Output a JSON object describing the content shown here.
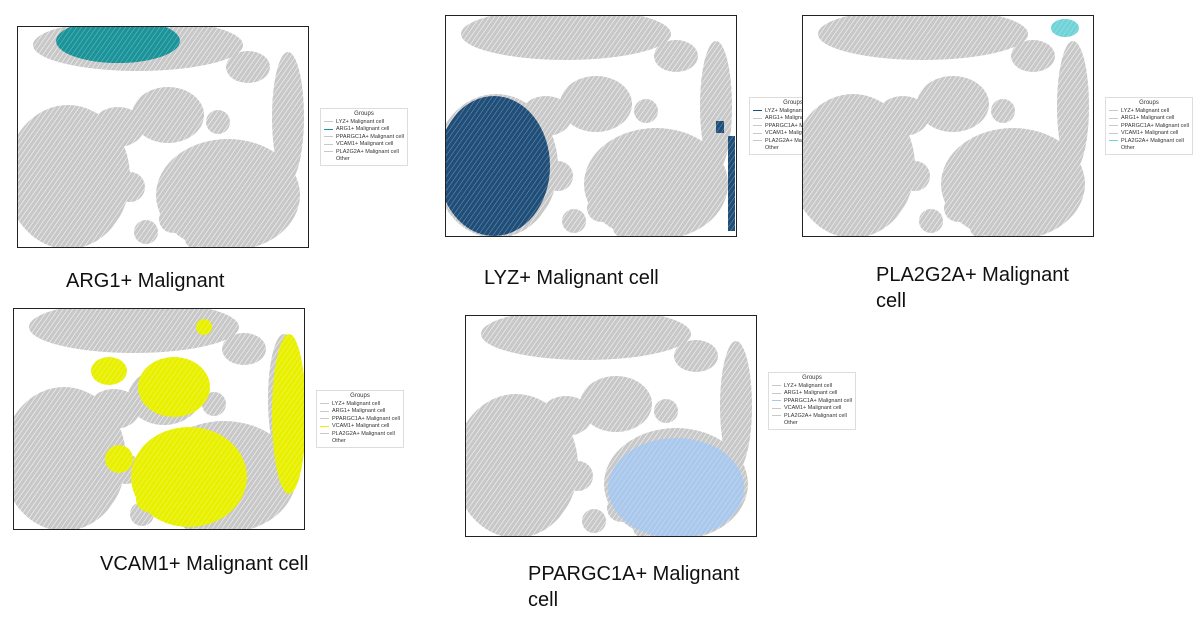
{
  "panels": [
    {
      "caption": "ARG1+ Malignant",
      "legend": {
        "title": "Groups",
        "entries": [
          {
            "label": "LYZ+ Malignant cell",
            "color": "#c8c8c8"
          },
          {
            "label": "ARG1+ Malignant cell",
            "color": "#1a9399"
          },
          {
            "label": "PPARGC1A+ Malignant cell",
            "color": "#c8c8c8"
          },
          {
            "label": "VCAM1+ Malignant cell",
            "color": "#c8c8c8"
          },
          {
            "label": "PLA2G2A+ Malignant cell",
            "color": "#c8c8c8"
          },
          {
            "label": "Other",
            "color": null
          }
        ]
      }
    },
    {
      "caption": "LYZ+ Malignant cell",
      "legend": {
        "title": "Groups",
        "entries": [
          {
            "label": "LYZ+ Malignant cell",
            "color": "#1f4e79"
          },
          {
            "label": "ARG1+ Malignant cell",
            "color": "#c8c8c8"
          },
          {
            "label": "PPARGC1A+ Malignant cell",
            "color": "#c8c8c8"
          },
          {
            "label": "VCAM1+ Malignant cell",
            "color": "#c8c8c8"
          },
          {
            "label": "PLA2G2A+ Malignant cell",
            "color": "#c8c8c8"
          },
          {
            "label": "Other",
            "color": null
          }
        ]
      }
    },
    {
      "caption": "PLA2G2A+ Malignant cell",
      "legend": {
        "title": "Groups",
        "entries": [
          {
            "label": "LYZ+ Malignant cell",
            "color": "#c8c8c8"
          },
          {
            "label": "ARG1+ Malignant cell",
            "color": "#c8c8c8"
          },
          {
            "label": "PPARGC1A+ Malignant cell",
            "color": "#c8c8c8"
          },
          {
            "label": "VCAM1+ Malignant cell",
            "color": "#c8c8c8"
          },
          {
            "label": "PLA2G2A+ Malignant cell",
            "color": "#6fd3d8"
          },
          {
            "label": "Other",
            "color": null
          }
        ]
      }
    },
    {
      "caption": "VCAM1+ Malignant cell",
      "legend": {
        "title": "Groups",
        "entries": [
          {
            "label": "LYZ+ Malignant cell",
            "color": "#c8c8c8"
          },
          {
            "label": "ARG1+ Malignant cell",
            "color": "#c8c8c8"
          },
          {
            "label": "PPARGC1A+ Malignant cell",
            "color": "#c8c8c8"
          },
          {
            "label": "VCAM1+ Malignant cell",
            "color": "#e8f000"
          },
          {
            "label": "PLA2G2A+ Malignant cell",
            "color": "#c8c8c8"
          },
          {
            "label": "Other",
            "color": null
          }
        ]
      }
    },
    {
      "caption": "PPARGC1A+ Malignant cell",
      "legend": {
        "title": "Groups",
        "entries": [
          {
            "label": "LYZ+ Malignant cell",
            "color": "#c8c8c8"
          },
          {
            "label": "ARG1+ Malignant cell",
            "color": "#c8c8c8"
          },
          {
            "label": "PPARGC1A+ Malignant cell",
            "color": "#a9c8ec"
          },
          {
            "label": "VCAM1+ Malignant cell",
            "color": "#c8c8c8"
          },
          {
            "label": "PLA2G2A+ Malignant cell",
            "color": "#c8c8c8"
          },
          {
            "label": "Other",
            "color": null
          }
        ]
      }
    }
  ]
}
